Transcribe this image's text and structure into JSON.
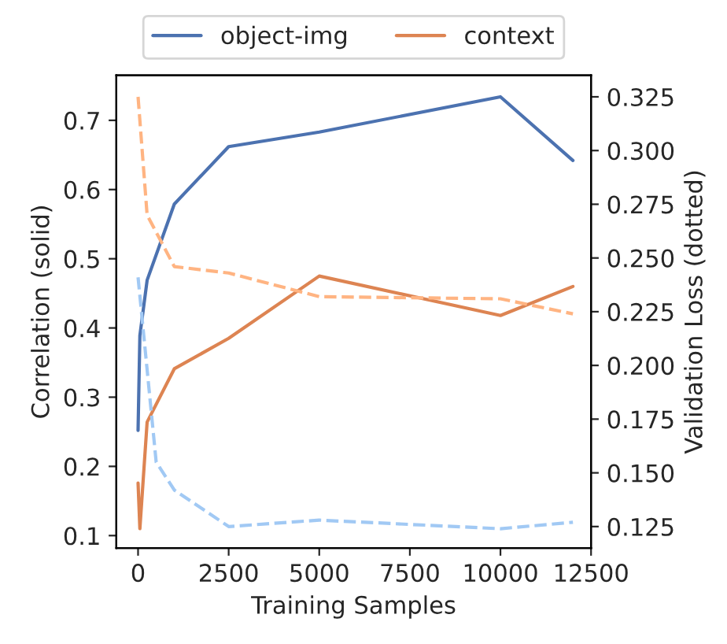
{
  "chart_data": {
    "type": "line",
    "xlabel": "Training Samples",
    "ylabel": "Correlation (solid)",
    "y2label": "Validation Loss (dotted)",
    "xlim": [
      -600,
      12500
    ],
    "xticks": [
      0,
      2500,
      5000,
      7500,
      10000,
      12500
    ],
    "ylim": [
      0.082,
      0.765
    ],
    "yticks": [
      0.1,
      0.2,
      0.3,
      0.4,
      0.5,
      0.6,
      0.7
    ],
    "y2lim": [
      0.115,
      0.335
    ],
    "y2ticks": [
      0.125,
      {
        "value": 0.15,
        "label": "0.150"
      },
      0.175,
      {
        "value": 0.2,
        "label": "0.200"
      },
      0.225,
      {
        "value": 0.25,
        "label": "0.250"
      },
      0.275,
      {
        "value": 0.3,
        "label": "0.300"
      },
      0.325
    ],
    "legend": "top",
    "grid": false,
    "series": [
      {
        "name": "object-img",
        "color": "#4c72b0",
        "line_style": "solid",
        "x": [
          0,
          50,
          250,
          1000,
          2500,
          5000,
          10000,
          12000
        ],
        "values": [
          0.252,
          0.389,
          0.469,
          0.579,
          0.662,
          0.683,
          0.734,
          0.642
        ]
      },
      {
        "name": "context",
        "color": "#dd8452",
        "line_style": "solid",
        "x": [
          0,
          50,
          250,
          1000,
          2500,
          5000,
          10000,
          12000
        ],
        "values": [
          0.176,
          0.11,
          0.264,
          0.341,
          0.385,
          0.475,
          0.418,
          0.46
        ]
      },
      {
        "color": "#a1c9f4",
        "line_style": "dashed",
        "axis": "y2",
        "x": [
          0,
          500,
          1000,
          2500,
          5000,
          10000,
          12000
        ],
        "values": [
          0.241,
          0.155,
          0.142,
          0.125,
          0.128,
          0.124,
          0.127
        ]
      },
      {
        "color": "#ffb482",
        "line_style": "dashed",
        "axis": "y2",
        "x": [
          0,
          250,
          1000,
          2500,
          5000,
          10000,
          12000
        ],
        "values": [
          0.325,
          0.27,
          0.246,
          0.243,
          0.232,
          0.231,
          0.224
        ]
      }
    ]
  }
}
